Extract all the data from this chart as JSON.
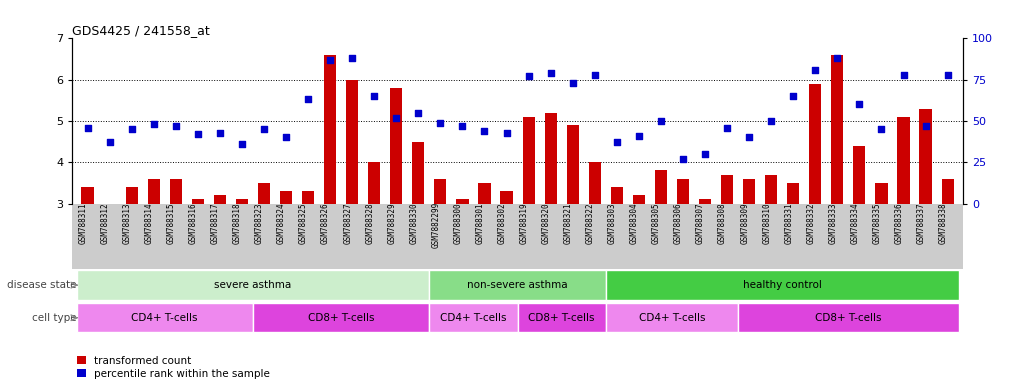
{
  "title": "GDS4425 / 241558_at",
  "sample_ids": [
    "GSM788311",
    "GSM788312",
    "GSM788313",
    "GSM788314",
    "GSM788315",
    "GSM788316",
    "GSM788317",
    "GSM788318",
    "GSM788323",
    "GSM788324",
    "GSM788325",
    "GSM788326",
    "GSM788327",
    "GSM788328",
    "GSM788329",
    "GSM788330",
    "GSM7882299",
    "GSM788300",
    "GSM788301",
    "GSM788302",
    "GSM788319",
    "GSM788320",
    "GSM788321",
    "GSM788322",
    "GSM788303",
    "GSM788304",
    "GSM788305",
    "GSM788306",
    "GSM788307",
    "GSM788308",
    "GSM788309",
    "GSM788310",
    "GSM788331",
    "GSM788332",
    "GSM788333",
    "GSM788334",
    "GSM788335",
    "GSM788336",
    "GSM788337",
    "GSM788338"
  ],
  "bar_values": [
    3.4,
    3.0,
    3.4,
    3.6,
    3.6,
    3.1,
    3.2,
    3.1,
    3.5,
    3.3,
    3.3,
    6.6,
    6.0,
    4.0,
    5.8,
    4.5,
    3.6,
    3.1,
    3.5,
    3.3,
    5.1,
    5.2,
    4.9,
    4.0,
    3.4,
    3.2,
    3.8,
    3.6,
    3.1,
    3.7,
    3.6,
    3.7,
    3.5,
    5.9,
    6.6,
    4.4,
    3.5,
    5.1,
    5.3,
    3.6
  ],
  "dot_values": [
    46,
    37,
    45,
    48,
    47,
    42,
    43,
    36,
    45,
    40,
    63,
    87,
    88,
    65,
    52,
    55,
    49,
    47,
    44,
    43,
    77,
    79,
    73,
    78,
    37,
    41,
    50,
    27,
    30,
    46,
    40,
    50,
    65,
    81,
    88,
    60,
    45,
    78,
    47,
    78
  ],
  "bar_color": "#cc0000",
  "dot_color": "#0000cc",
  "ylim_left": [
    3.0,
    7.0
  ],
  "ylim_right": [
    0,
    100
  ],
  "yticks_left": [
    3,
    4,
    5,
    6,
    7
  ],
  "yticks_right": [
    0,
    25,
    50,
    75,
    100
  ],
  "disease_groups": [
    {
      "label": "severe asthma",
      "start": 0,
      "end": 16,
      "color": "#cceecc"
    },
    {
      "label": "non-severe asthma",
      "start": 16,
      "end": 24,
      "color": "#88dd88"
    },
    {
      "label": "healthy control",
      "start": 24,
      "end": 40,
      "color": "#44cc44"
    }
  ],
  "cell_type_groups": [
    {
      "label": "CD4+ T-cells",
      "start": 0,
      "end": 8,
      "color": "#ee88ee"
    },
    {
      "label": "CD8+ T-cells",
      "start": 8,
      "end": 16,
      "color": "#dd44dd"
    },
    {
      "label": "CD4+ T-cells",
      "start": 16,
      "end": 20,
      "color": "#ee88ee"
    },
    {
      "label": "CD8+ T-cells",
      "start": 20,
      "end": 24,
      "color": "#dd44dd"
    },
    {
      "label": "CD4+ T-cells",
      "start": 24,
      "end": 30,
      "color": "#ee88ee"
    },
    {
      "label": "CD8+ T-cells",
      "start": 30,
      "end": 40,
      "color": "#dd44dd"
    }
  ],
  "disease_label": "disease state",
  "cell_type_label": "cell type",
  "legend_bar_label": "transformed count",
  "legend_dot_label": "percentile rank within the sample",
  "xtick_bg_color": "#cccccc",
  "plot_bg_color": "#ffffff",
  "gridline_color": "#000000"
}
